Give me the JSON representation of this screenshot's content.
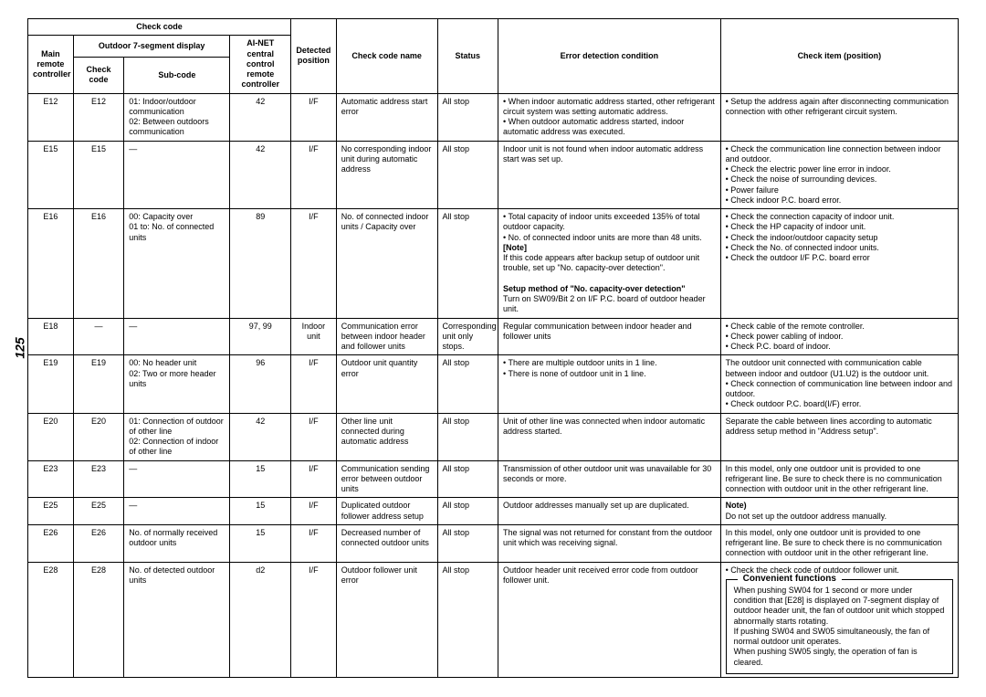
{
  "page_number": "125",
  "headers": {
    "check_code": "Check code",
    "main_remote": "Main remote controller",
    "outdoor_7seg": "Outdoor 7-segment display",
    "ainet": "AI-NET central control remote controller",
    "check_code_col": "Check code",
    "sub_code": "Sub-code",
    "detected_position": "Detected position",
    "check_code_name": "Check code name",
    "status": "Status",
    "error_condition": "Error detection condition",
    "check_item": "Check item (position)"
  },
  "rows": [
    {
      "main": "E12",
      "cc": "E12",
      "sub": "01: Indoor/outdoor communication\n02: Between outdoors communication",
      "ainet": "42",
      "det": "I/F",
      "name": "Automatic address start error",
      "status": "All stop",
      "cond": "• When indoor automatic address started, other refrigerant circuit system was setting automatic address.\n• When outdoor automatic address started, indoor automatic address was executed.",
      "check": "• Setup the address again after disconnecting communication connection with other refrigerant circuit system."
    },
    {
      "main": "E15",
      "cc": "E15",
      "sub": "—",
      "ainet": "42",
      "det": "I/F",
      "name": "No corresponding indoor unit during automatic address",
      "status": "All stop",
      "cond": "Indoor unit is not found when indoor automatic address start was set up.",
      "check": "• Check the communication line connection between indoor and outdoor.\n• Check the electric power line error in indoor.\n• Check the noise of surrounding devices.\n• Power failure\n• Check indoor P.C. board error."
    },
    {
      "main": "E16",
      "cc": "E16",
      "sub": "00: Capacity over\n01 to: No. of connected units",
      "ainet": "89",
      "det": "I/F",
      "name": "No. of connected indoor units / Capacity over",
      "status": "All stop",
      "cond_html": "• Total capacity of indoor units exceeded 135% of total outdoor capacity.<br>• No. of connected indoor units are more than 48 units.<br><span class=\"bold\">[Note]</span><br>If this code appears after backup setup of outdoor unit trouble, set up \"No. capacity-over detection\".<br><br><span class=\"bold\">Setup method of \"No. capacity-over detection\"</span><br>Turn on SW09/Bit 2 on I/F P.C. board of outdoor header unit.",
      "check": "• Check the connection capacity of indoor unit.\n• Check the HP capacity of indoor unit.\n• Check the indoor/outdoor capacity setup\n• Check the No. of connected indoor units.\n• Check the outdoor I/F P.C. board error"
    },
    {
      "main": "E18",
      "cc": "—",
      "sub": "—",
      "ainet": "97, 99",
      "det": "Indoor unit",
      "name": "Communication error between indoor header and follower units",
      "status": "Corresponding unit only stops.",
      "cond": "Regular communication between indoor header and follower units",
      "check": "• Check cable of the remote controller.\n• Check power cabling of indoor.\n• Check P.C. board of indoor."
    },
    {
      "main": "E19",
      "cc": "E19",
      "sub": "00: No header unit\n02: Two or more header units",
      "ainet": "96",
      "det": "I/F",
      "name": "Outdoor unit quantity error",
      "status": "All stop",
      "cond": "• There are multiple outdoor units in 1 line.\n• There is none of outdoor unit in 1 line.",
      "check": "The outdoor unit connected with communication cable between indoor and outdoor (U1.U2) is the outdoor unit.\n• Check connection of communication line between indoor and outdoor.\n• Check outdoor P.C. board(I/F) error."
    },
    {
      "main": "E20",
      "cc": "E20",
      "sub": "01: Connection of outdoor of other line\n02: Connection of indoor of other line",
      "ainet": "42",
      "det": "I/F",
      "name": "Other line unit connected during automatic address",
      "status": "All stop",
      "cond": "Unit of other line was connected when indoor automatic address started.",
      "check": "Separate the cable between lines according to automatic address setup method in \"Address setup\"."
    },
    {
      "main": "E23",
      "cc": "E23",
      "sub": "—",
      "ainet": "15",
      "det": "I/F",
      "name": "Communication sending error between outdoor units",
      "status": "All stop",
      "cond": "Transmission of other outdoor unit was unavailable for 30 seconds or more.",
      "check": "In this model, only one outdoor unit is provided to one refrigerant line. Be sure to check there is no communication connection with outdoor unit in the other refrigerant line.",
      "merge_check_below": true
    },
    {
      "main": "E25",
      "cc": "E25",
      "sub": "—",
      "ainet": "15",
      "det": "I/F",
      "name": "Duplicated outdoor follower address setup",
      "status": "All stop",
      "cond": "Outdoor addresses manually set up are duplicated.",
      "check_html": "<span class=\"bold\">Note)</span><br>Do not set up the outdoor address manually."
    },
    {
      "main": "E26",
      "cc": "E26",
      "sub": "No. of normally received outdoor units",
      "ainet": "15",
      "det": "I/F",
      "name": "Decreased number of connected outdoor units",
      "status": "All stop",
      "cond": "The signal was not returned for constant from the outdoor unit which was receiving signal.",
      "check": "In this model, only one outdoor unit is provided to one refrigerant line. Be sure to check there is no communication connection with outdoor unit in the other refrigerant line."
    },
    {
      "main": "E28",
      "cc": "E28",
      "sub": "No. of detected outdoor units",
      "ainet": "d2",
      "det": "I/F",
      "name": "Outdoor follower unit error",
      "status": "All stop",
      "cond": "Outdoor header unit received error code from outdoor follower unit.",
      "check": "• Check the check code of outdoor follower unit.",
      "has_convenient": true
    }
  ],
  "convenient": {
    "title": "Convenient functions",
    "body": "When pushing SW04 for 1 second or more under condition that [E28] is displayed on 7-segment display of outdoor header unit, the fan of outdoor unit which stopped abnormally starts rotating.\nIf pushing SW04 and SW05 simultaneously, the fan of normal outdoor unit operates.\nWhen pushing SW05 singly, the operation of fan is cleared."
  }
}
